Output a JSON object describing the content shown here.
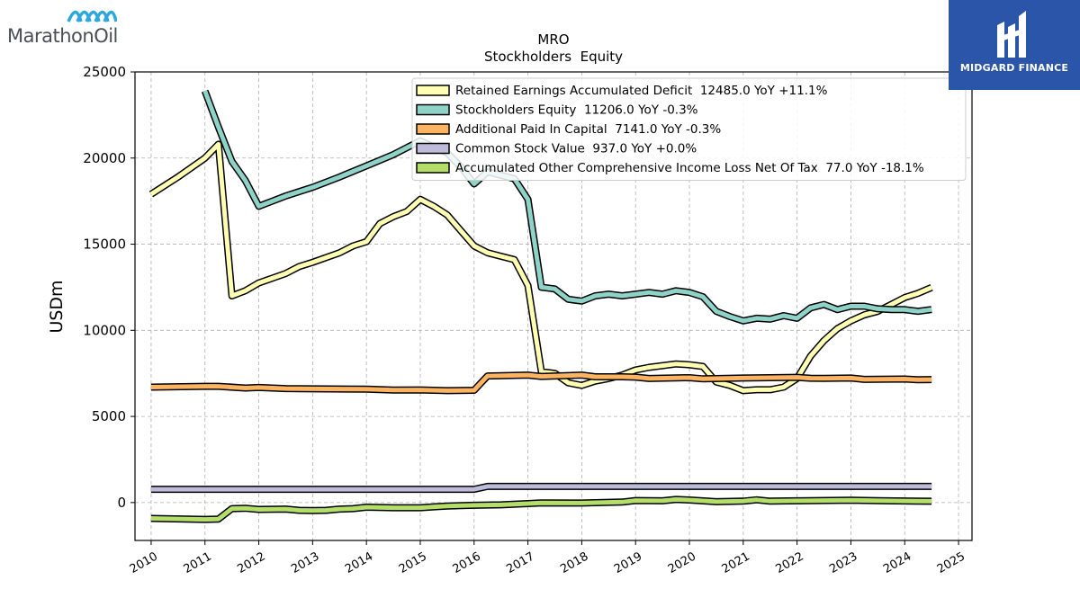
{
  "brand": {
    "left_logo_text": "MarathonOil",
    "right_logo_text": "MIDGARD FINANCE"
  },
  "chart_data": {
    "type": "line",
    "title": "MRO",
    "subtitle": "Stockholders  Equity",
    "ylabel": "USDm",
    "xlabel": "",
    "xlim": [
      2009.7,
      2025.25
    ],
    "ylim": [
      -2200,
      25000
    ],
    "x_ticks": [
      2010,
      2011,
      2012,
      2013,
      2014,
      2015,
      2016,
      2017,
      2018,
      2019,
      2020,
      2021,
      2022,
      2023,
      2024,
      2025
    ],
    "y_ticks": [
      0,
      5000,
      10000,
      15000,
      20000,
      25000
    ],
    "grid": true,
    "legend_position": "top-right",
    "series": [
      {
        "name": "Retained Earnings Accumulated Deficit  12485.0 YoY +11.1%",
        "color": "#ffffb3",
        "points": [
          [
            2010.0,
            17900
          ],
          [
            2010.5,
            18900
          ],
          [
            2011.0,
            20000
          ],
          [
            2011.25,
            20800
          ],
          [
            2011.5,
            12000
          ],
          [
            2011.75,
            12300
          ],
          [
            2012.0,
            12750
          ],
          [
            2012.5,
            13300
          ],
          [
            2012.75,
            13700
          ],
          [
            2013.0,
            13950
          ],
          [
            2013.5,
            14500
          ],
          [
            2013.75,
            14900
          ],
          [
            2014.0,
            15150
          ],
          [
            2014.25,
            16200
          ],
          [
            2014.5,
            16600
          ],
          [
            2014.75,
            16900
          ],
          [
            2015.0,
            17600
          ],
          [
            2015.25,
            17200
          ],
          [
            2015.5,
            16700
          ],
          [
            2015.75,
            15800
          ],
          [
            2016.0,
            14900
          ],
          [
            2016.25,
            14500
          ],
          [
            2016.5,
            14300
          ],
          [
            2016.75,
            14100
          ],
          [
            2017.0,
            12600
          ],
          [
            2017.25,
            7600
          ],
          [
            2017.5,
            7500
          ],
          [
            2017.75,
            6950
          ],
          [
            2018.0,
            6800
          ],
          [
            2018.25,
            7050
          ],
          [
            2018.5,
            7200
          ],
          [
            2018.75,
            7400
          ],
          [
            2019.0,
            7700
          ],
          [
            2019.25,
            7850
          ],
          [
            2019.5,
            7950
          ],
          [
            2019.75,
            8050
          ],
          [
            2020.0,
            8000
          ],
          [
            2020.25,
            7900
          ],
          [
            2020.5,
            7000
          ],
          [
            2020.75,
            6800
          ],
          [
            2021.0,
            6500
          ],
          [
            2021.25,
            6550
          ],
          [
            2021.5,
            6550
          ],
          [
            2021.75,
            6700
          ],
          [
            2022.0,
            7200
          ],
          [
            2022.25,
            8500
          ],
          [
            2022.5,
            9400
          ],
          [
            2022.75,
            10100
          ],
          [
            2023.0,
            10550
          ],
          [
            2023.25,
            10900
          ],
          [
            2023.5,
            11100
          ],
          [
            2023.75,
            11500
          ],
          [
            2024.0,
            11900
          ],
          [
            2024.25,
            12150
          ],
          [
            2024.5,
            12485
          ]
        ]
      },
      {
        "name": "Stockholders Equity  11206.0 YoY -0.3%",
        "color": "#8dd3c7",
        "points": [
          [
            2011.0,
            23900
          ],
          [
            2011.25,
            21800
          ],
          [
            2011.5,
            19800
          ],
          [
            2011.75,
            18700
          ],
          [
            2012.0,
            17200
          ],
          [
            2012.25,
            17500
          ],
          [
            2012.5,
            17800
          ],
          [
            2012.75,
            18050
          ],
          [
            2013.0,
            18300
          ],
          [
            2013.5,
            18900
          ],
          [
            2014.0,
            19550
          ],
          [
            2014.5,
            20200
          ],
          [
            2015.0,
            21000
          ],
          [
            2015.5,
            20300
          ],
          [
            2015.75,
            19500
          ],
          [
            2016.0,
            18500
          ],
          [
            2016.25,
            19200
          ],
          [
            2016.5,
            19000
          ],
          [
            2016.75,
            18800
          ],
          [
            2017.0,
            17600
          ],
          [
            2017.25,
            12500
          ],
          [
            2017.5,
            12400
          ],
          [
            2017.75,
            11800
          ],
          [
            2018.0,
            11700
          ],
          [
            2018.25,
            12000
          ],
          [
            2018.5,
            12100
          ],
          [
            2018.75,
            12000
          ],
          [
            2019.0,
            12100
          ],
          [
            2019.25,
            12200
          ],
          [
            2019.5,
            12100
          ],
          [
            2019.75,
            12300
          ],
          [
            2020.0,
            12200
          ],
          [
            2020.25,
            11950
          ],
          [
            2020.5,
            11100
          ],
          [
            2020.75,
            10800
          ],
          [
            2021.0,
            10550
          ],
          [
            2021.25,
            10700
          ],
          [
            2021.5,
            10650
          ],
          [
            2021.75,
            10850
          ],
          [
            2022.0,
            10700
          ],
          [
            2022.25,
            11300
          ],
          [
            2022.5,
            11500
          ],
          [
            2022.75,
            11200
          ],
          [
            2023.0,
            11400
          ],
          [
            2023.25,
            11400
          ],
          [
            2023.5,
            11250
          ],
          [
            2023.75,
            11200
          ],
          [
            2024.0,
            11200
          ],
          [
            2024.25,
            11100
          ],
          [
            2024.5,
            11206
          ]
        ]
      },
      {
        "name": "Additional Paid In Capital  7141.0 YoY -0.3%",
        "color": "#fdb462",
        "points": [
          [
            2010.0,
            6700
          ],
          [
            2011.0,
            6750
          ],
          [
            2011.25,
            6750
          ],
          [
            2011.75,
            6650
          ],
          [
            2012.0,
            6680
          ],
          [
            2012.5,
            6620
          ],
          [
            2013.0,
            6600
          ],
          [
            2014.0,
            6580
          ],
          [
            2014.5,
            6530
          ],
          [
            2015.0,
            6540
          ],
          [
            2015.5,
            6500
          ],
          [
            2016.0,
            6520
          ],
          [
            2016.25,
            7350
          ],
          [
            2017.0,
            7400
          ],
          [
            2017.25,
            7320
          ],
          [
            2017.5,
            7350
          ],
          [
            2018.0,
            7400
          ],
          [
            2018.25,
            7300
          ],
          [
            2018.75,
            7300
          ],
          [
            2019.0,
            7280
          ],
          [
            2019.25,
            7200
          ],
          [
            2020.0,
            7250
          ],
          [
            2020.25,
            7180
          ],
          [
            2021.0,
            7230
          ],
          [
            2022.0,
            7270
          ],
          [
            2022.25,
            7220
          ],
          [
            2022.5,
            7210
          ],
          [
            2023.0,
            7230
          ],
          [
            2023.25,
            7150
          ],
          [
            2024.0,
            7170
          ],
          [
            2024.25,
            7130
          ],
          [
            2024.5,
            7141
          ]
        ]
      },
      {
        "name": "Common Stock Value  937.0 YoY +0.0%",
        "color": "#bebada",
        "points": [
          [
            2010.0,
            770
          ],
          [
            2016.0,
            770
          ],
          [
            2016.25,
            940
          ],
          [
            2024.5,
            937
          ]
        ]
      },
      {
        "name": "Accumulated Other Comprehensive Income Loss Net Of Tax  77.0 YoY -18.1%",
        "color": "#b3de69",
        "points": [
          [
            2010.0,
            -920
          ],
          [
            2011.0,
            -980
          ],
          [
            2011.25,
            -960
          ],
          [
            2011.5,
            -350
          ],
          [
            2011.75,
            -330
          ],
          [
            2012.0,
            -400
          ],
          [
            2012.5,
            -380
          ],
          [
            2012.75,
            -450
          ],
          [
            2013.0,
            -460
          ],
          [
            2013.25,
            -450
          ],
          [
            2013.5,
            -380
          ],
          [
            2013.75,
            -350
          ],
          [
            2014.0,
            -270
          ],
          [
            2014.5,
            -300
          ],
          [
            2015.0,
            -300
          ],
          [
            2015.25,
            -250
          ],
          [
            2015.5,
            -200
          ],
          [
            2016.0,
            -160
          ],
          [
            2016.5,
            -130
          ],
          [
            2017.0,
            -60
          ],
          [
            2017.25,
            -20
          ],
          [
            2018.0,
            -30
          ],
          [
            2018.75,
            30
          ],
          [
            2019.0,
            120
          ],
          [
            2019.5,
            100
          ],
          [
            2019.75,
            180
          ],
          [
            2020.0,
            150
          ],
          [
            2020.5,
            50
          ],
          [
            2021.0,
            80
          ],
          [
            2021.25,
            160
          ],
          [
            2021.5,
            80
          ],
          [
            2022.0,
            100
          ],
          [
            2023.0,
            140
          ],
          [
            2023.5,
            110
          ],
          [
            2024.0,
            90
          ],
          [
            2024.5,
            77
          ]
        ]
      }
    ]
  }
}
